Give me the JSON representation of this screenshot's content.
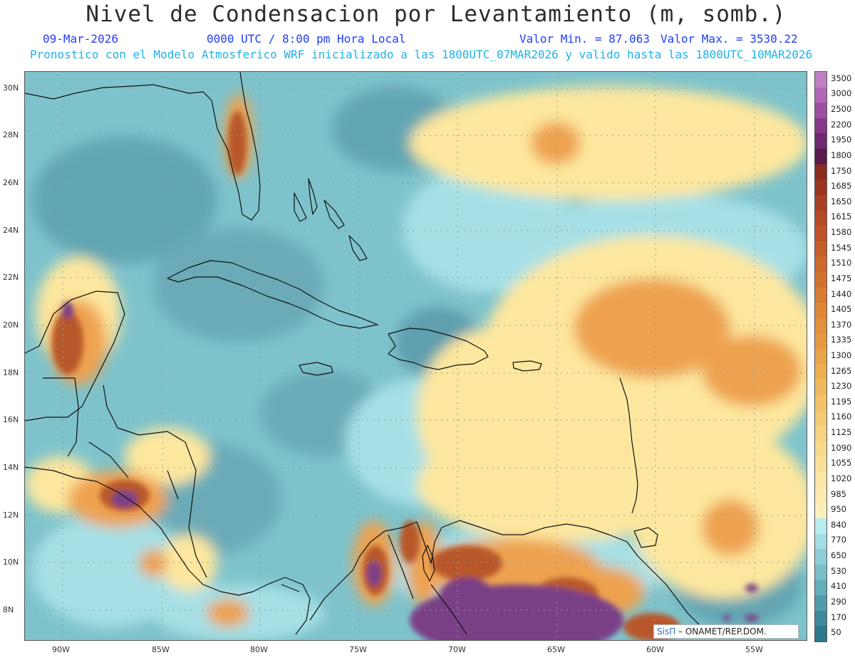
{
  "header": {
    "title": "Nivel de Condensacion por Levantamiento (m, somb.)",
    "date": "09-Mar-2026",
    "time": "0000 UTC / 8:00 pm Hora Local",
    "min_label": "Valor Min. = 87.063",
    "max_label": "Valor Max. = 3530.22",
    "model_line": "Pronostico con el Modelo Atmosferico WRF inicializado a las 1800UTC_07MAR2026 y valido hasta las  1800UTC_10MAR2026"
  },
  "map": {
    "lon_labels": [
      "90W",
      "85W",
      "80W",
      "75W",
      "70W",
      "65W",
      "60W",
      "55W"
    ],
    "lat_labels": [
      "30N",
      "28N",
      "26N",
      "24N",
      "22N",
      "20N",
      "18N",
      "16N",
      "14N",
      "12N",
      "10N",
      "8N"
    ],
    "colors": {
      "ocean_base": "#7ec3cc",
      "ocean_dark": "#5fa3b1",
      "cyan_light": "#a6e0e6",
      "yellow": "#fde79e",
      "orange": "#eea24f",
      "rust": "#b8582a",
      "purple": "#7a3f86",
      "coast": "#111111"
    }
  },
  "credit": {
    "brand": "SisΠ",
    "text": " – ONAMET/REP.DOM."
  },
  "legend": {
    "labels": [
      "3500",
      "3000",
      "2500",
      "2200",
      "1950",
      "1800",
      "1750",
      "1685",
      "1650",
      "1615",
      "1580",
      "1545",
      "1510",
      "1475",
      "1440",
      "1405",
      "1370",
      "1335",
      "1300",
      "1265",
      "1230",
      "1195",
      "1160",
      "1125",
      "1090",
      "1055",
      "1020",
      "985",
      "950",
      "840",
      "770",
      "650",
      "530",
      "410",
      "290",
      "170",
      "50"
    ],
    "colors": [
      "#c080c0",
      "#b068b4",
      "#9c50a0",
      "#843a88",
      "#6e2a70",
      "#5a1a4a",
      "#8a2c1e",
      "#9a3620",
      "#a84024",
      "#b44a26",
      "#be5428",
      "#c65e2a",
      "#cc682c",
      "#d2722e",
      "#d87c32",
      "#de8636",
      "#e2903a",
      "#e69a40",
      "#eaa448",
      "#eeae52",
      "#f0b85c",
      "#f2c268",
      "#f4ca74",
      "#f6d282",
      "#f8da8e",
      "#f9e09a",
      "#fae6a6",
      "#fbeab2",
      "#fcefbe",
      "#b8ecf0",
      "#a4dde4",
      "#8ccdd6",
      "#78bdc8",
      "#64adba",
      "#509cac",
      "#3e8a9c",
      "#2c788c"
    ]
  }
}
